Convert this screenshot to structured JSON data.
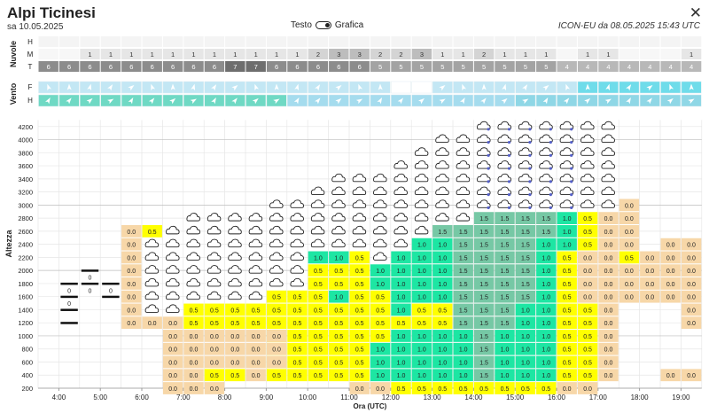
{
  "header": {
    "title": "Alpi Ticinesi",
    "subtitle": "sa 10.05.2025",
    "toggle_left": "Testo",
    "toggle_right": "Grafica",
    "model_info": "ICON-EU da 08.05.2025 15:43 UTC",
    "close_label": "✕"
  },
  "clouds": {
    "section_label": "Nuvole",
    "row_labels": [
      "H",
      "M",
      "T"
    ],
    "H": [
      "",
      "",
      "",
      "",
      "",
      "",
      "",
      "",
      "",
      "",
      "",
      "",
      "",
      "",
      "",
      "",
      "",
      "",
      "",
      "",
      "",
      "",
      "",
      "",
      "",
      "",
      "",
      "",
      "",
      "",
      "",
      ""
    ],
    "M": [
      "",
      "",
      "1",
      "1",
      "1",
      "1",
      "1",
      "1",
      "1",
      "1",
      "1",
      "1",
      "1",
      "2",
      "3",
      "3",
      "2",
      "2",
      "3",
      "1",
      "1",
      "2",
      "1",
      "1",
      "1",
      "",
      "1",
      "1",
      "",
      "",
      "",
      "1"
    ],
    "T": [
      "6",
      "6",
      "6",
      "6",
      "6",
      "6",
      "6",
      "6",
      "6",
      "7",
      "7",
      "6",
      "6",
      "6",
      "6",
      "6",
      "5",
      "5",
      "5",
      "5",
      "5",
      "5",
      "5",
      "5",
      "5",
      "4",
      "4",
      "4",
      "4",
      "4",
      "4",
      "4"
    ]
  },
  "wind": {
    "section_label": "Vento",
    "row_labels": [
      "F",
      "H"
    ]
  },
  "grid": {
    "y_title": "Altezza",
    "x_title": "Ora (UTC)",
    "altitudes": [
      "200",
      "400",
      "600",
      "800",
      "1000",
      "1200",
      "1400",
      "1600",
      "1800",
      "2000",
      "2200",
      "2400",
      "2600",
      "2800",
      "3000",
      "3200",
      "3400",
      "3600",
      "3800",
      "4000",
      "4200"
    ],
    "hours": [
      "4:00",
      "5:00",
      "6:00",
      "7:00",
      "8:00",
      "9:00",
      "10:00",
      "11:00",
      "12:00",
      "13:00",
      "14:00",
      "15:00",
      "16:00",
      "17:00",
      "18:00",
      "19:00"
    ]
  },
  "chart_data": {
    "type": "heatmap",
    "description": "",
    "columns": 32,
    "column_start": "3:30",
    "column_step_minutes": 30,
    "rows_bottom_altitude_m": 200,
    "row_step_m": 100,
    "stations_at_start": [
      {
        "col": 0,
        "values": [
          "0",
          "0",
          "0"
        ]
      },
      {
        "col": 1,
        "values": [
          "0",
          "0",
          "0"
        ]
      },
      {
        "col": 2,
        "values": [
          "0",
          "0"
        ]
      }
    ],
    "cells": [
      {
        "col": 5,
        "rows": [
          [
            15,
            "0.0"
          ],
          [
            14,
            "0.0"
          ],
          [
            12,
            "0.0"
          ],
          [
            11,
            "0.0"
          ],
          [
            10,
            "0.0"
          ],
          [
            9,
            "0.0"
          ],
          [
            8,
            "0.0"
          ],
          [
            7,
            "0.0"
          ],
          [
            6,
            "0.0"
          ],
          [
            5,
            "0.0"
          ]
        ]
      },
      {
        "col": 6,
        "rows": [
          [
            22,
            "0.5"
          ]
        ]
      },
      {
        "col": 8,
        "rows": [
          [
            0,
            "0.0"
          ]
        ]
      },
      {
        "col": 9,
        "rows": [
          [
            0,
            "0.0"
          ],
          [
            1,
            "0.0"
          ],
          [
            2,
            "0.0"
          ],
          [
            3,
            "0.0"
          ],
          [
            5,
            "0.0"
          ],
          [
            7,
            "0.5"
          ],
          [
            8,
            "0.5"
          ],
          [
            9,
            "0.5"
          ],
          [
            10,
            "0.5"
          ],
          [
            11,
            "0.5"
          ],
          [
            12,
            "0.5"
          ],
          [
            13,
            "0.5"
          ]
        ]
      }
    ],
    "legend": {
      "0.0": "#f7d7a8",
      "0.5": "#ffff00",
      "1.0": "#1de6a3",
      "1.5": "#76c8a5",
      "cloud": "#ffffff"
    }
  },
  "colors": {
    "cell_0_0": "#f7d7a8",
    "cell_0_5": "#ffff00",
    "cell_1_0": "#1de6a3",
    "cell_1_5": "#76c8a5",
    "wind_row_f": "#bfe6f3",
    "wind_row_h": "#6fdcc7",
    "cloud_M": "#d9d9d9",
    "cloud_T": "#8c8c8c"
  }
}
